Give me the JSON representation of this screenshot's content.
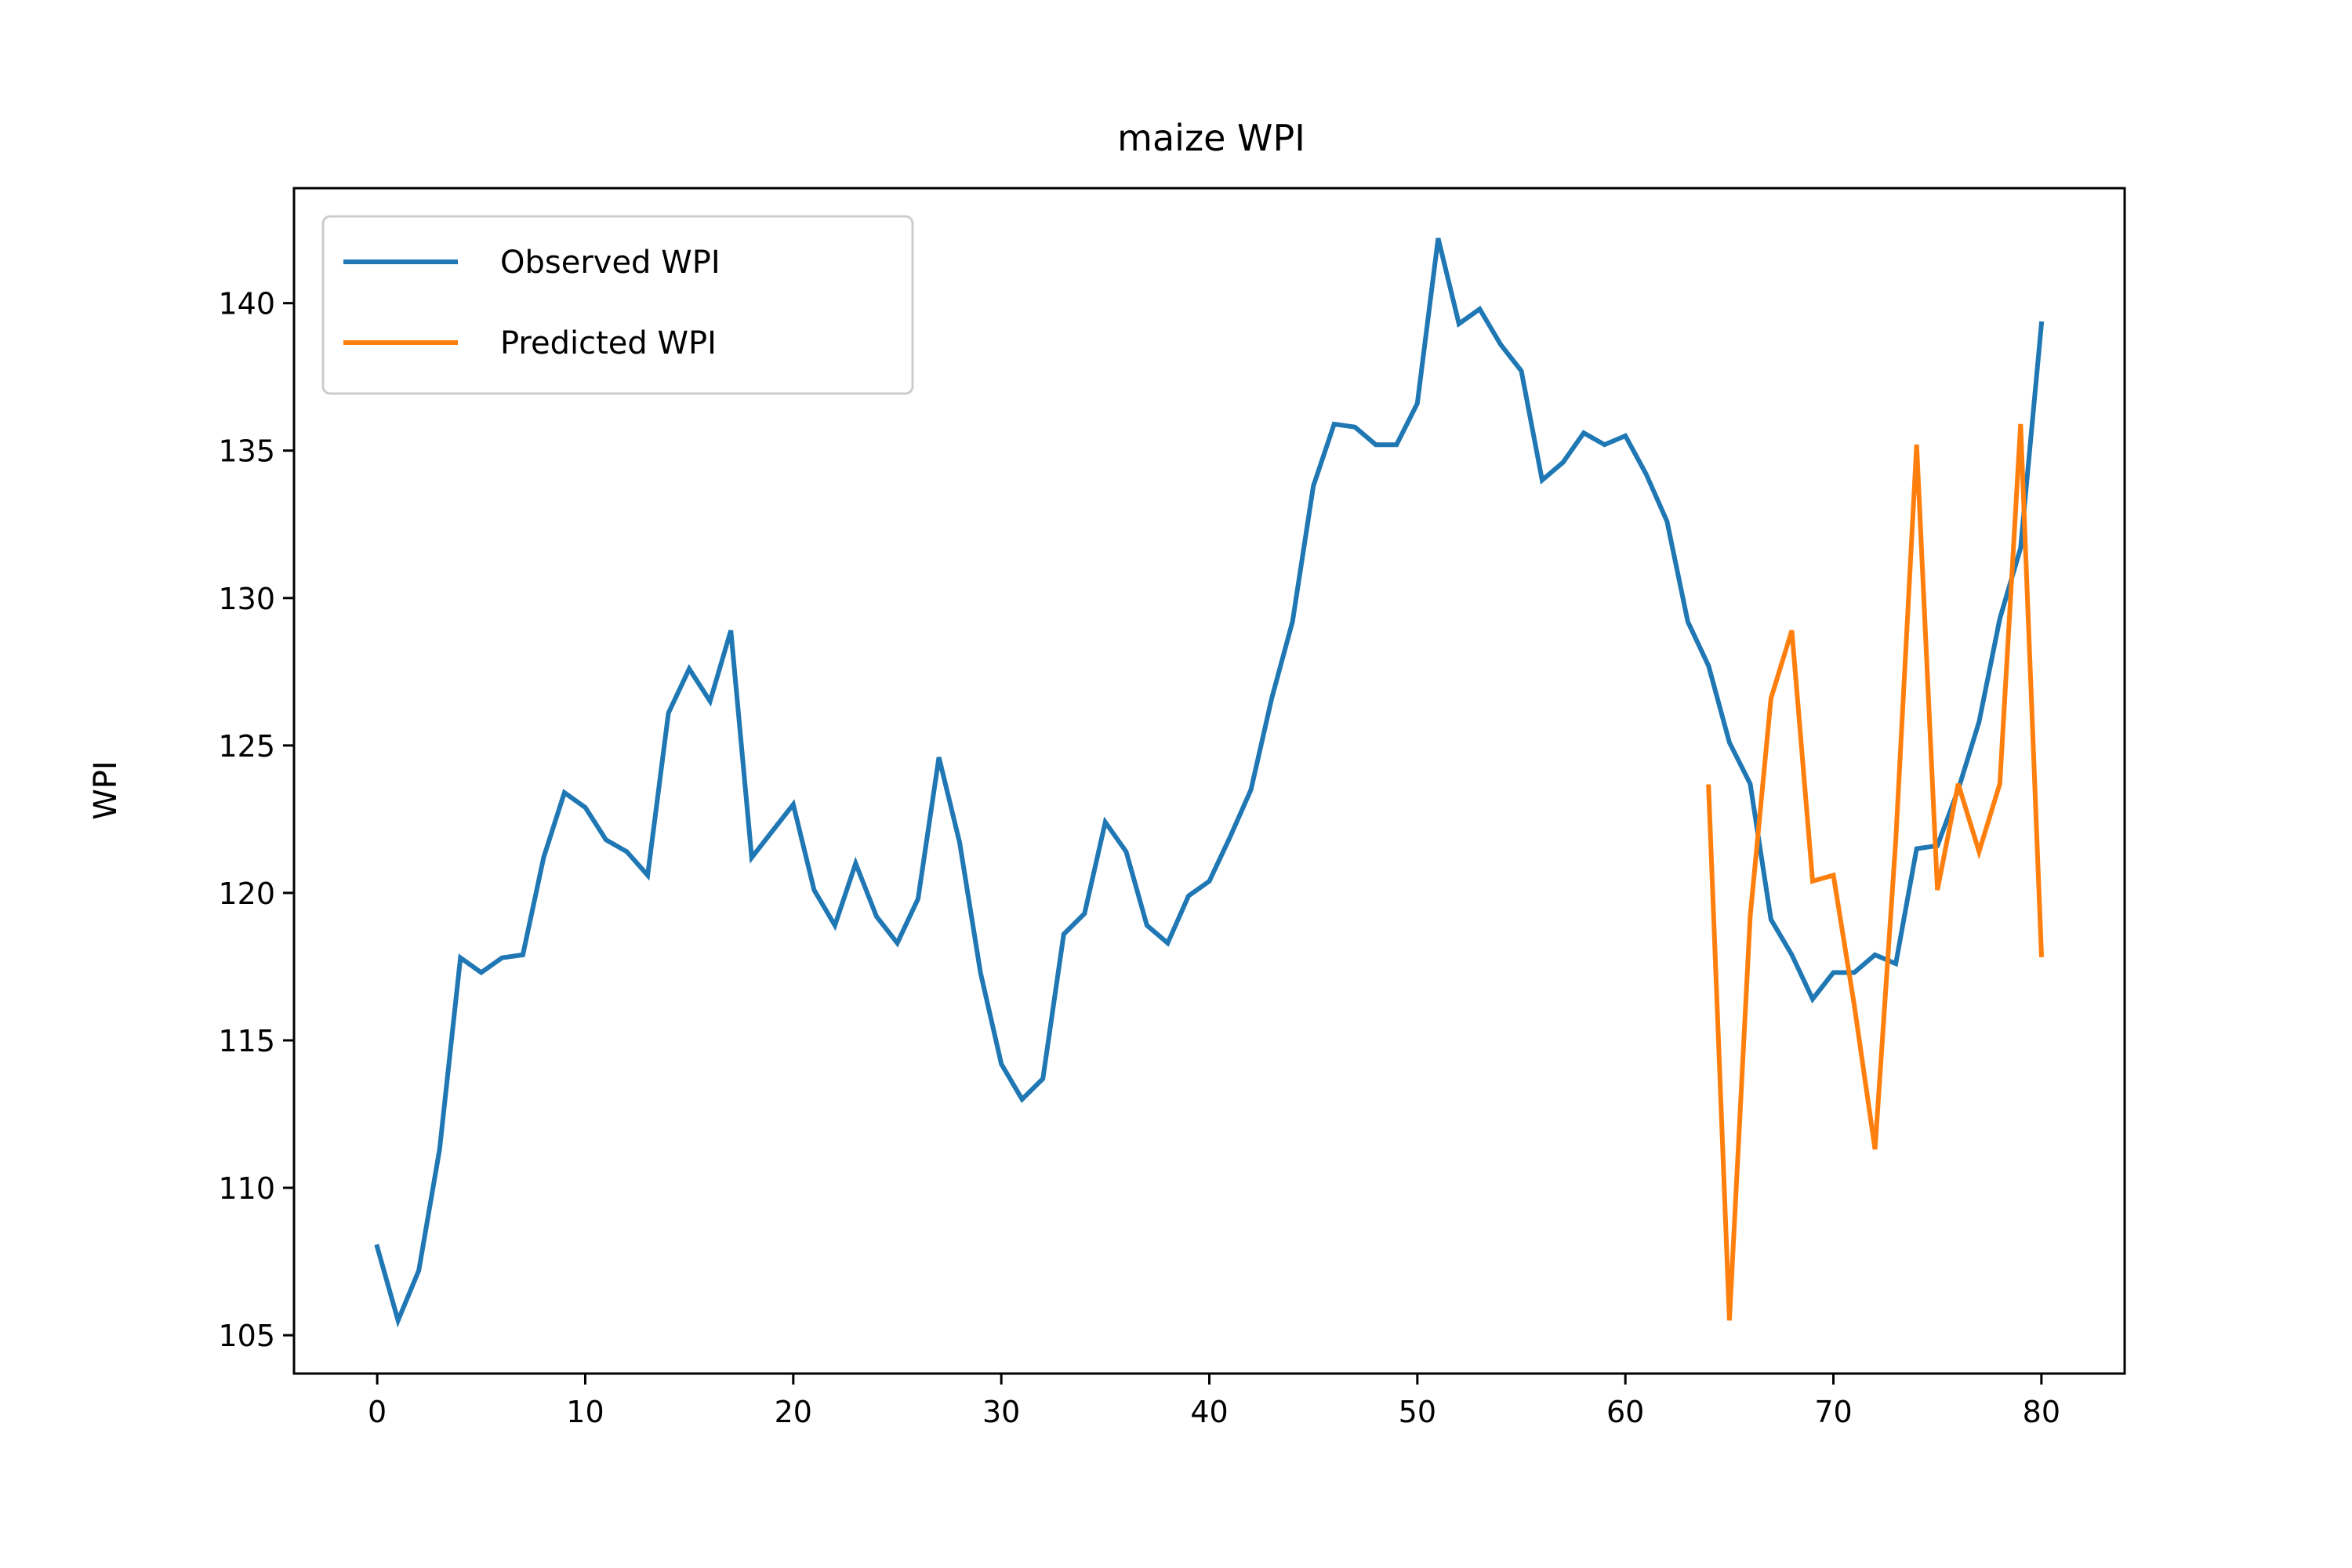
{
  "chart_data": {
    "type": "line",
    "title": "maize WPI",
    "xlabel": "",
    "ylabel": "WPI",
    "xlim": [
      -4,
      84
    ],
    "ylim": [
      103.7,
      143.9
    ],
    "xticks": [
      0,
      10,
      20,
      30,
      40,
      50,
      60,
      70,
      80
    ],
    "yticks": [
      105,
      110,
      115,
      120,
      125,
      130,
      135,
      140
    ],
    "grid": false,
    "legend_position": "top-left",
    "series": [
      {
        "name": "Observed WPI",
        "color": "#1f77b4",
        "x": [
          0,
          1,
          2,
          3,
          4,
          5,
          6,
          7,
          8,
          9,
          10,
          11,
          12,
          13,
          14,
          15,
          16,
          17,
          18,
          19,
          20,
          21,
          22,
          23,
          24,
          25,
          26,
          27,
          28,
          29,
          30,
          31,
          32,
          33,
          34,
          35,
          36,
          37,
          38,
          39,
          40,
          41,
          42,
          43,
          44,
          45,
          46,
          47,
          48,
          49,
          50,
          51,
          52,
          53,
          54,
          55,
          56,
          57,
          58,
          59,
          60,
          61,
          62,
          63,
          64,
          65,
          66,
          67,
          68,
          69,
          70,
          71,
          72,
          73,
          74,
          75,
          76,
          77,
          78,
          79,
          80
        ],
        "y": [
          108.0,
          105.5,
          107.2,
          111.3,
          117.8,
          117.3,
          117.8,
          117.9,
          121.2,
          123.4,
          122.9,
          121.8,
          121.4,
          120.6,
          126.1,
          127.6,
          126.5,
          128.9,
          121.2,
          122.1,
          123.0,
          120.1,
          118.9,
          121.0,
          119.2,
          118.3,
          119.8,
          124.6,
          121.7,
          117.3,
          114.2,
          113.0,
          113.7,
          118.6,
          119.3,
          122.4,
          121.4,
          118.9,
          118.3,
          119.9,
          120.4,
          121.9,
          123.5,
          126.6,
          129.2,
          133.8,
          135.9,
          135.8,
          135.2,
          135.2,
          136.6,
          142.2,
          139.3,
          139.8,
          138.6,
          137.7,
          134.0,
          134.6,
          135.6,
          135.2,
          135.5,
          134.2,
          132.6,
          129.2,
          127.7,
          125.1,
          123.7,
          119.1,
          117.9,
          116.4,
          117.3,
          117.3,
          117.9,
          117.6,
          121.5,
          121.6,
          123.5,
          125.8,
          129.3,
          131.7,
          139.3
        ]
      },
      {
        "name": "Predicted WPI",
        "color": "#ff7f0e",
        "x": [
          64,
          65,
          66,
          67,
          68,
          69,
          70,
          71,
          72,
          73,
          74,
          75,
          76,
          77,
          78,
          79,
          80
        ],
        "y": [
          123.6,
          105.5,
          119.2,
          126.6,
          128.9,
          120.4,
          120.6,
          116.2,
          111.3,
          121.8,
          135.2,
          120.1,
          123.7,
          121.4,
          123.7,
          135.9,
          117.9
        ]
      }
    ]
  }
}
